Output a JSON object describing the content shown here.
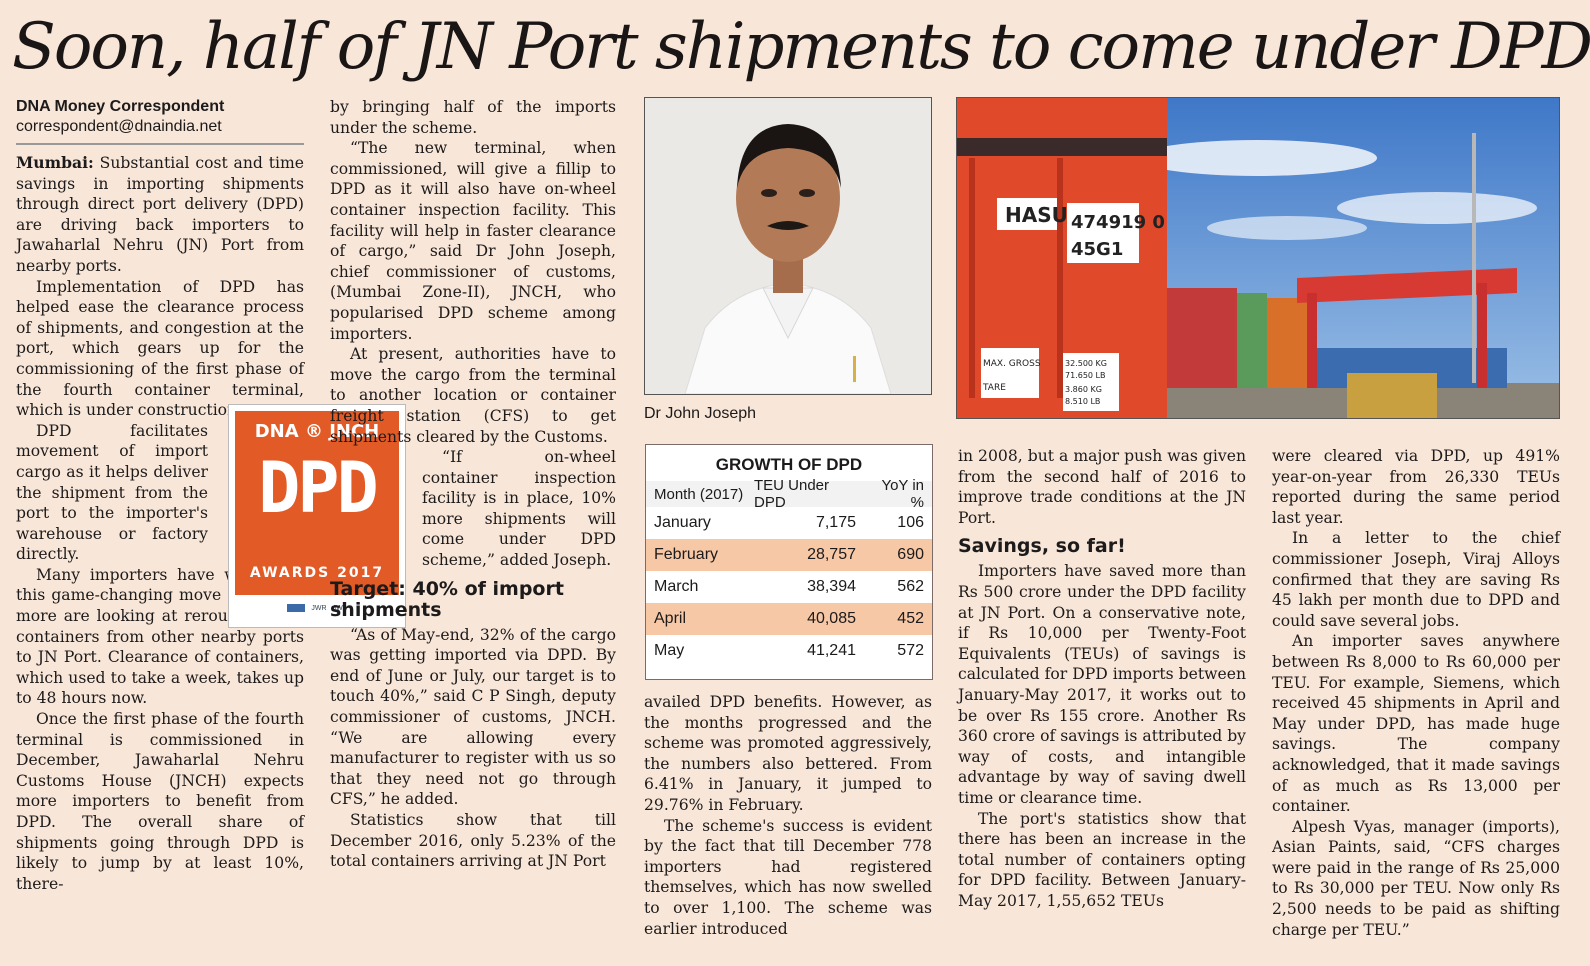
{
  "headline": "Soon, half of JN Port shipments to come under DPD",
  "byline": {
    "name": "DNA Money Correspondent",
    "email": "correspondent@dnaindia.net"
  },
  "col1": {
    "lead": "Mumbai:",
    "p1": "Substantial cost and time savings in importing shipments through direct port delivery (DPD) are driving back importers to Jawaharlal Nehru (JN) Port from nearby ports.",
    "p2": "Implementation of DPD has helped ease the clearance process of shipments, and congestion at the port, which gears up for the commissioning of the first phase of the fourth container terminal, which is under construction.",
    "p3": "DPD facilitates movement of import cargo as it helps deliver the shipment from the port to the importer's warehouse or factory directly.",
    "p4": "Many importers have welcomed this game-changing move and some more are looking at rerouting their containers from other nearby ports to JN Port. Clearance of containers, which used to take a week, takes up to 48 hours now.",
    "p5": "Once the first phase of the fourth terminal is commissioned in December, Jawaharlal Nehru Customs House (JNCH) expects more importers to benefit from DPD. The overall share of shipments going through DPD is likely to jump by at least 10%, there-"
  },
  "logo": {
    "top": "DNA ® JNCH",
    "mid": "DPD",
    "bottom": "AWARDS 2017",
    "foot1": "JWR",
    "foot2": "JWL"
  },
  "col2": {
    "p1": "by bringing half of the imports under the scheme.",
    "p2": "“The new terminal, when commissioned, will give a fillip to DPD as it will also have on-wheel container inspection facility. This facility will help in faster clearance of cargo,” said Dr John Joseph, chief commissioner of customs, (Mumbai Zone-II), JNCH, who popularised DPD scheme among importers.",
    "p3": "At present, authorities have to move the cargo from the terminal to another location or container freight station (CFS) to get shipments cleared by the Customs.",
    "p4": "“If on-wheel container inspection facility is in place, 10% more shipments will come under DPD scheme,” added Joseph.",
    "h": "Target: 40% of import shipments",
    "p5": "“As of May-end, 32% of the cargo was getting imported via DPD. By end of June or July, our target is to touch 40%,” said C P Singh, deputy commissioner of customs, JNCH. “We are allowing every manufacturer to register with us so that they need not go through CFS,” he added.",
    "p6": "Statistics show that till December 2016, only 5.23% of the total containers arriving at JN Port"
  },
  "caption": "Dr John Joseph",
  "table": {
    "title": "GROWTH OF DPD",
    "headers": [
      "Month (2017)",
      "TEU Under DPD",
      "YoY in %"
    ],
    "rows": [
      [
        "January",
        "7,175",
        "106"
      ],
      [
        "February",
        "28,757",
        "690"
      ],
      [
        "March",
        "38,394",
        "562"
      ],
      [
        "April",
        "40,085",
        "452"
      ],
      [
        "May",
        "41,241",
        "572"
      ]
    ]
  },
  "col3": {
    "p1": "availed DPD benefits. However, as the months progressed and the scheme was promoted aggressively, the numbers also bettered. From 6.41% in January, it jumped to 29.76% in February.",
    "p2": "The scheme's success is evident by the fact that till December 778 importers had registered themselves, which has now swelled to over 1,100. The scheme was earlier introduced"
  },
  "container": {
    "c1": "HASU",
    "c2": "474919 0",
    "c3": "45G1",
    "c4": "MAX. GROSS",
    "c5": "TARE",
    "c6": "32.500 KG",
    "c7": "71.650 LB",
    "c8": "3.860 KG",
    "c9": "8.510 LB"
  },
  "col4": {
    "p1": "in 2008, but a major push was given from the second half of 2016 to improve trade conditions at the JN Port.",
    "h": "Savings, so far!",
    "p2": "Importers have saved more than Rs 500 crore under the DPD facility at JN Port. On a conservative note, if Rs 10,000 per Twenty-Foot Equivalents (TEUs) of savings is calculated for DPD imports between January-May 2017, it works out to be over Rs 155 crore. Another Rs 360 crore of savings is attributed by way of costs, and intangible advantage by way of saving dwell time or clearance time.",
    "p3": "The port's statistics show that there has been an increase in the total number of containers opting for DPD facility. Between January-May 2017, 1,55,652 TEUs"
  },
  "col5": {
    "p1": "were cleared via DPD, up 491% year-on-year from 26,330 TEUs reported during the same period last year.",
    "p2": "In a letter to the chief commissioner Joseph, Viraj Alloys confirmed that they are saving Rs 45 lakh per month due to DPD and could save several jobs.",
    "p3": "An importer saves anywhere between Rs 8,000 to Rs 60,000 per TEU. For example, Siemens, which received 45 shipments in April and May under DPD, has made huge savings. The company acknowledged, that it made savings of as much as Rs 13,000 per container.",
    "p4": "Alpesh Vyas, manager (imports), Asian Paints, said, “CFS charges were paid in the range of Rs 25,000 to Rs 30,000 per TEU. Now only Rs 2,500 needs to be paid as shifting charge per TEU.”"
  },
  "colors": {
    "background": "#f8e6d8",
    "table_alt": "#f7c8a6",
    "logo_orange": "#e25a26"
  }
}
